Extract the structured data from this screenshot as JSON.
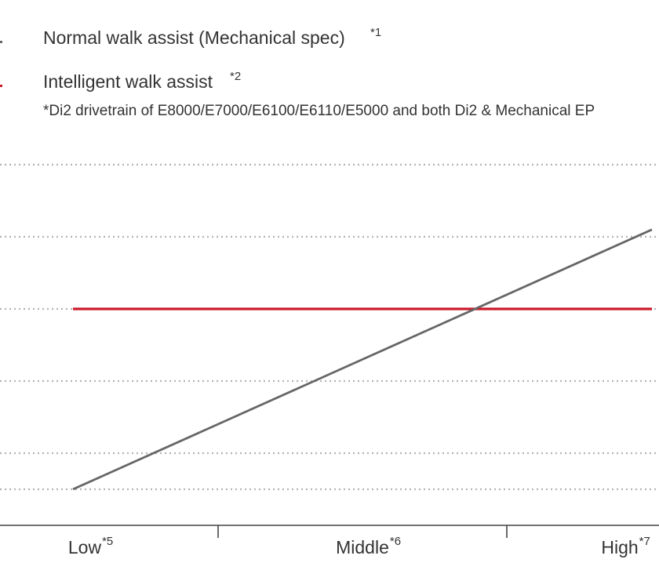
{
  "chart_data": {
    "type": "line",
    "categories": [
      "Low",
      "Middle",
      "High"
    ],
    "category_notes": [
      "*5",
      "*6",
      "*7"
    ],
    "series": [
      {
        "name": "Normal walk assist (Mechanical spec)",
        "note": "*1",
        "color": "#666666",
        "values": [
          0.5,
          2.3,
          4.1
        ]
      },
      {
        "name": "Intelligent walk assist",
        "note": "*2",
        "color": "#cc1a2a",
        "values": [
          3.0,
          3.0,
          3.0
        ]
      }
    ],
    "footnote": "*Di2 drivetrain of E8000/E7000/E6100/E6110/E5000 and both Di2 & Mechanical EP",
    "ylim": [
      0,
      5
    ],
    "y_gridlines": [
      0.5,
      1.0,
      2.0,
      3.0,
      4.0,
      5.0
    ],
    "grid": "horizontal dotted",
    "legend_placement": "top-left",
    "colors": {
      "normal": "#666666",
      "intelligent": "#cc1a2a",
      "grid": "#b3b3b3",
      "axis": "#444444",
      "text": "#333333"
    }
  }
}
